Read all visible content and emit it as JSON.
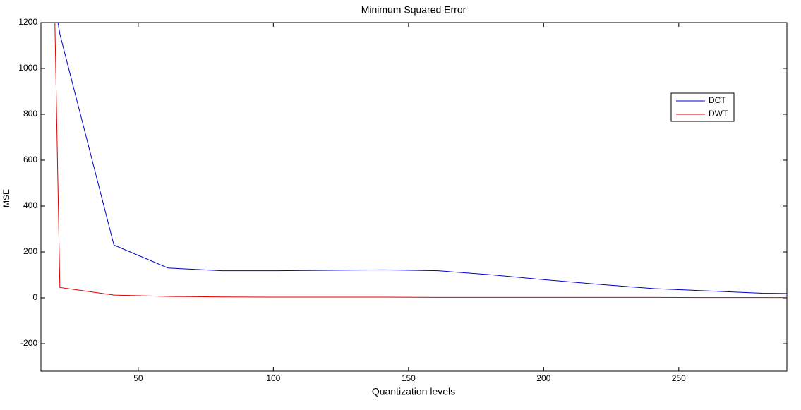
{
  "chart_data": {
    "type": "line",
    "title": "Minimum Squared Error",
    "x_label": "Quantization levels",
    "y_label": "MSE",
    "x": [
      19,
      21,
      41,
      61,
      81,
      101,
      121,
      141,
      161,
      181,
      201,
      221,
      241,
      261,
      281,
      290
    ],
    "series": [
      {
        "name": "DCT",
        "color": "#0000cc",
        "values": [
          1300,
          1150,
          230,
          130,
          118,
          118,
          120,
          122,
          118,
          100,
          78,
          58,
          40,
          30,
          20,
          19
        ]
      },
      {
        "name": "DWT",
        "color": "#dd0000",
        "values": [
          1300,
          45,
          12,
          6,
          4,
          3,
          3,
          3,
          2,
          2,
          2,
          2,
          2,
          1,
          1,
          1
        ]
      }
    ],
    "xlim": [
      14,
      290
    ],
    "ylim": [
      -320,
      1200
    ],
    "xticks": [
      50,
      100,
      150,
      200,
      250
    ],
    "yticks": [
      -200,
      0,
      200,
      400,
      600,
      800,
      1000,
      1200
    ],
    "grid": false,
    "legend": "northeast"
  }
}
